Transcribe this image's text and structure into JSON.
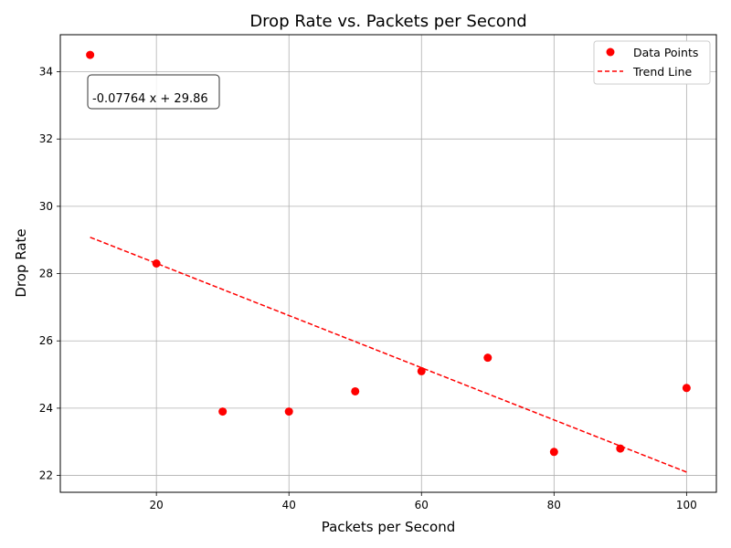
{
  "chart_data": {
    "type": "scatter",
    "title": "Drop Rate vs. Packets per Second",
    "xlabel": "Packets per Second",
    "ylabel": "Drop Rate",
    "xlim": [
      5.5,
      104.5
    ],
    "ylim": [
      21.5,
      35.1
    ],
    "xticks": [
      20,
      40,
      60,
      80,
      100
    ],
    "yticks": [
      22,
      24,
      26,
      28,
      30,
      32,
      34
    ],
    "grid": true,
    "legend_position": "top-right",
    "series": [
      {
        "name": "Data Points",
        "kind": "scatter",
        "color": "#ff0000",
        "x": [
          10,
          20,
          30,
          40,
          50,
          60,
          70,
          80,
          90,
          100
        ],
        "y": [
          34.5,
          28.3,
          23.9,
          23.9,
          24.5,
          25.1,
          25.5,
          22.7,
          22.8,
          24.6
        ]
      },
      {
        "name": "Trend Line",
        "kind": "line",
        "style": "dashed",
        "color": "#ff0000",
        "slope": -0.07764,
        "intercept": 29.86,
        "x": [
          10,
          100
        ],
        "y": [
          29.08,
          22.1
        ]
      }
    ],
    "annotation": "-0.07764 x + 29.86"
  }
}
